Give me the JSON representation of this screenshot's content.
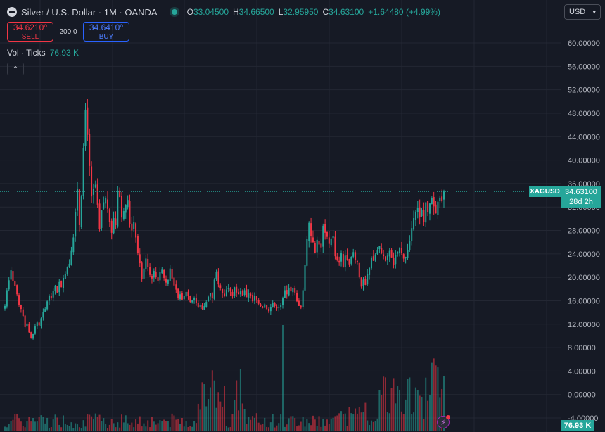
{
  "header": {
    "title": "Silver / U.S. Dollar · 1M · OANDA",
    "ohlc": {
      "o_label": "O",
      "o": "33.04500",
      "h_label": "H",
      "h": "34.66500",
      "l_label": "L",
      "l": "32.95950",
      "c_label": "C",
      "c": "34.63100",
      "change": "+1.64480 (+4.99%)"
    },
    "currency": "USD"
  },
  "trade": {
    "sell_price": "34.6210⁰",
    "sell_label": "SELL",
    "spread": "200.0",
    "buy_price": "34.6410⁰",
    "buy_label": "BUY"
  },
  "volume_legend": {
    "label": "Vol · Ticks",
    "value": "76.93 K"
  },
  "price_axis": {
    "labels": [
      "60.00000",
      "56.00000",
      "52.00000",
      "48.00000",
      "44.00000",
      "40.00000",
      "36.00000",
      "32.00000",
      "28.00000",
      "24.00000",
      "20.00000",
      "16.00000",
      "12.00000",
      "8.00000",
      "4.00000",
      "0.00000",
      "-4.00000"
    ]
  },
  "last_price": {
    "symbol": "XAGUSD",
    "price": "34.63100",
    "countdown": "28d 2h"
  },
  "volume_last": "76.93 K",
  "colors": {
    "up": "#26a69a",
    "down": "#f23645",
    "background": "#161a25",
    "grid": "#232733"
  },
  "chart_data": {
    "type": "candlestick",
    "title": "Silver / U.S. Dollar · 1M · OANDA",
    "ylim": [
      -4,
      60
    ],
    "last": 34.631,
    "closes": [
      15.1,
      17.8,
      19.5,
      21.2,
      19.3,
      18.5,
      17.1,
      15.3,
      14.6,
      13.4,
      11.5,
      12.1,
      10.6,
      9.6,
      10.3,
      11.6,
      12.3,
      11.8,
      13.0,
      14.1,
      14.6,
      15.9,
      16.9,
      16.4,
      17.7,
      18.6,
      17.4,
      19.2,
      18.3,
      19.9,
      20.6,
      21.8,
      22.3,
      24.5,
      26.8,
      31.1,
      35.1,
      28.9,
      33.8,
      42.1,
      48.6,
      44.3,
      39.0,
      33.8,
      35.1,
      35.8,
      32.4,
      28.3,
      31.4,
      32.8,
      33.6,
      31.7,
      29.5,
      27.6,
      30.1,
      28.9,
      34.8,
      33.7,
      30.2,
      31.3,
      32.3,
      33.2,
      29.1,
      28.0,
      29.4,
      26.8,
      24.1,
      22.4,
      19.7,
      21.5,
      23.2,
      21.8,
      20.4,
      19.8,
      21.1,
      20.1,
      19.3,
      20.9,
      21.3,
      19.9,
      19.1,
      19.6,
      21.5,
      19.8,
      18.6,
      17.9,
      16.4,
      17.1,
      16.2,
      16.8,
      17.5,
      16.9,
      15.8,
      16.1,
      16.5,
      15.6,
      14.9,
      15.3,
      14.6,
      15.1,
      15.8,
      16.7,
      17.3,
      16.4,
      19.6,
      20.9,
      18.8,
      18.1,
      17.3,
      16.8,
      17.9,
      18.2,
      17.6,
      16.8,
      18.3,
      17.4,
      17.1,
      17.6,
      16.9,
      17.8,
      16.6,
      17.3,
      16.9,
      15.9,
      16.8,
      16.2,
      15.5,
      15.1,
      14.8,
      15.4,
      14.6,
      14.2,
      14.9,
      15.6,
      15.1,
      14.7,
      14.9,
      15.2,
      16.4,
      17.8,
      17.1,
      18.2,
      17.6,
      18.1,
      17.4,
      15.9,
      15.1,
      14.8,
      17.8,
      22.1,
      26.5,
      29.3,
      27.0,
      26.0,
      24.2,
      26.4,
      25.6,
      25.1,
      28.8,
      27.6,
      26.9,
      25.7,
      26.6,
      27.1,
      23.6,
      22.9,
      22.5,
      24.1,
      21.8,
      23.7,
      23.0,
      22.2,
      23.5,
      24.3,
      22.9,
      22.6,
      20.0,
      18.4,
      19.6,
      18.7,
      20.5,
      21.6,
      23.4,
      22.8,
      23.9,
      24.6,
      25.3,
      24.1,
      23.6,
      22.8,
      23.7,
      24.5,
      23.4,
      22.1,
      23.8,
      24.4,
      25.1,
      24.1,
      23.2,
      23.5,
      24.6,
      26.2,
      28.4,
      30.1,
      31.2,
      31.8,
      30.3,
      31.5,
      29.4,
      32.8,
      31.1,
      32.6,
      33.5,
      32.1,
      30.9,
      32.9,
      33.6,
      33.0,
      34.63
    ]
  }
}
